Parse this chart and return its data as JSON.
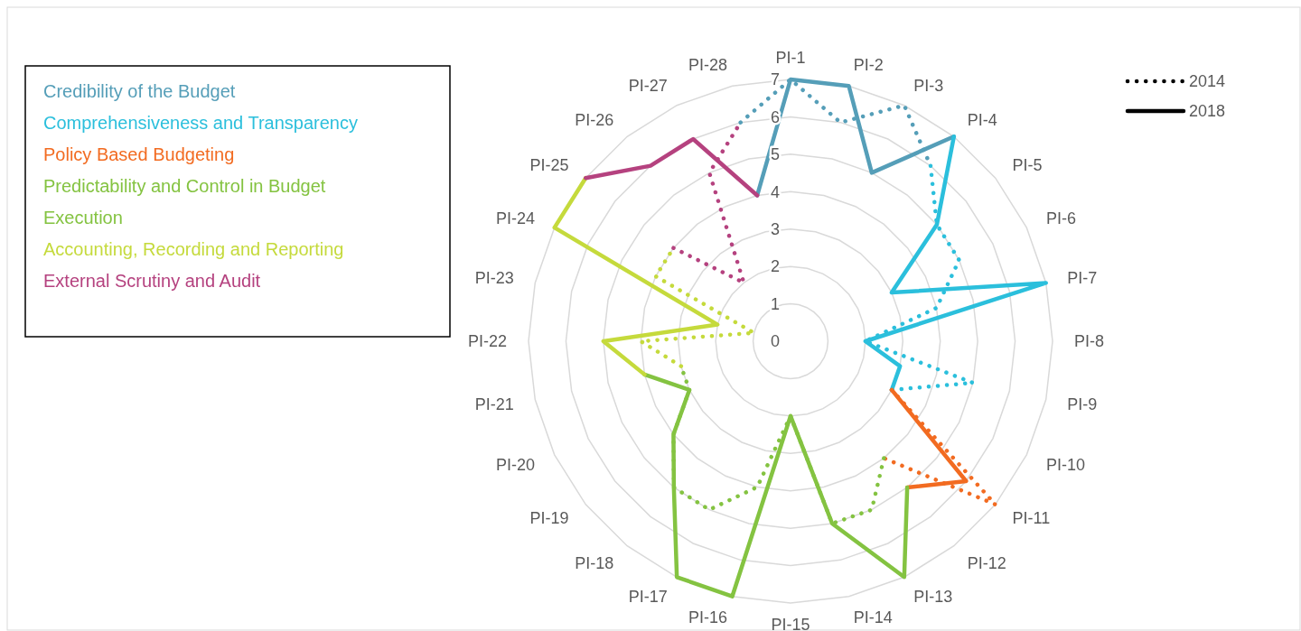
{
  "chart_data": {
    "type": "radar",
    "categories": [
      "PI-1",
      "PI-2",
      "PI-3",
      "PI-4",
      "PI-5",
      "PI-6",
      "PI-7",
      "PI-8",
      "PI-9",
      "PI-10",
      "PI-11",
      "PI-12",
      "PI-13",
      "PI-14",
      "PI-15",
      "PI-16",
      "PI-17",
      "PI-18",
      "PI-19",
      "PI-20",
      "PI-21",
      "PI-22",
      "PI-23",
      "PI-24",
      "PI-25",
      "PI-26",
      "PI-27",
      "PI-28"
    ],
    "ylim": [
      0,
      7
    ],
    "yticks": [
      0,
      1,
      2,
      3,
      4,
      5,
      6,
      7
    ],
    "grid": true,
    "legend": "left",
    "annotations": [
      "2014",
      "2018"
    ],
    "series": [
      {
        "color": "#559eb8",
        "line_style": "dotted",
        "values": [
          7,
          6,
          7,
          6,
          null,
          null,
          null,
          null,
          null,
          null,
          null,
          null,
          null,
          null,
          null,
          null,
          null,
          null,
          null,
          null,
          null,
          null,
          null,
          null,
          null,
          null,
          null,
          6
        ]
      },
      {
        "color": "#2bbfdc",
        "line_style": "dotted",
        "values": [
          null,
          null,
          null,
          6,
          5,
          5,
          4,
          2,
          5,
          3,
          null,
          null,
          null,
          null,
          null,
          null,
          null,
          null,
          null,
          null,
          null,
          null,
          null,
          null,
          null,
          null,
          null,
          null
        ]
      },
      {
        "color": "#f26b21",
        "line_style": "dotted",
        "values": [
          null,
          null,
          null,
          null,
          null,
          null,
          null,
          null,
          null,
          3,
          7,
          4,
          null,
          null,
          null,
          null,
          null,
          null,
          null,
          null,
          null,
          null,
          null,
          null,
          null,
          null,
          null,
          null
        ]
      },
      {
        "color": "#84c341",
        "line_style": "dotted",
        "values": [
          null,
          null,
          null,
          null,
          null,
          null,
          null,
          null,
          null,
          null,
          null,
          4,
          5,
          5,
          2,
          4,
          5,
          5,
          4,
          3,
          3,
          null,
          null,
          null,
          null,
          null,
          null,
          null
        ]
      },
      {
        "color": "#c5da3c",
        "line_style": "dotted",
        "values": [
          null,
          null,
          null,
          null,
          null,
          null,
          null,
          null,
          null,
          null,
          null,
          null,
          null,
          null,
          null,
          null,
          null,
          null,
          null,
          null,
          3,
          4,
          1,
          4,
          4,
          null,
          null,
          null
        ]
      },
      {
        "color": "#b5427f",
        "line_style": "dotted",
        "values": [
          null,
          null,
          null,
          null,
          null,
          null,
          null,
          null,
          null,
          null,
          null,
          null,
          null,
          null,
          null,
          null,
          null,
          null,
          null,
          null,
          null,
          null,
          null,
          null,
          4,
          2,
          5,
          6
        ]
      },
      {
        "name": "Credibility of the Budget",
        "color": "#559eb8",
        "line_style": "solid",
        "values": [
          7,
          7,
          5,
          7,
          null,
          null,
          null,
          null,
          null,
          null,
          null,
          null,
          null,
          null,
          null,
          null,
          null,
          null,
          null,
          null,
          null,
          null,
          null,
          null,
          null,
          null,
          null,
          4
        ]
      },
      {
        "name": "Comprehensiveness and Transparency",
        "color": "#2bbfdc",
        "line_style": "solid",
        "values": [
          null,
          null,
          null,
          7,
          5,
          3,
          7,
          2,
          3,
          3,
          null,
          null,
          null,
          null,
          null,
          null,
          null,
          null,
          null,
          null,
          null,
          null,
          null,
          null,
          null,
          null,
          null,
          null
        ]
      },
      {
        "name": "Policy Based Budgeting",
        "color": "#f26b21",
        "line_style": "solid",
        "values": [
          null,
          null,
          null,
          null,
          null,
          null,
          null,
          null,
          null,
          3,
          6,
          5,
          null,
          null,
          null,
          null,
          null,
          null,
          null,
          null,
          null,
          null,
          null,
          null,
          null,
          null,
          null,
          null
        ]
      },
      {
        "name": "Predictability and Control in Budget Execution",
        "color": "#84c341",
        "line_style": "solid",
        "values": [
          null,
          null,
          null,
          null,
          null,
          null,
          null,
          null,
          null,
          null,
          null,
          5,
          7,
          5,
          2,
          7,
          7,
          5,
          4,
          3,
          4,
          null,
          null,
          null,
          null,
          null,
          null,
          null
        ]
      },
      {
        "name": "Accounting, Recording and Reporting",
        "color": "#c5da3c",
        "line_style": "solid",
        "values": [
          null,
          null,
          null,
          null,
          null,
          null,
          null,
          null,
          null,
          null,
          null,
          null,
          null,
          null,
          null,
          null,
          null,
          null,
          null,
          null,
          4,
          5,
          2,
          7,
          7,
          null,
          null,
          null
        ]
      },
      {
        "name": "External Scrutiny and Audit",
        "color": "#b5427f",
        "line_style": "solid",
        "values": [
          null,
          null,
          null,
          null,
          null,
          null,
          null,
          null,
          null,
          null,
          null,
          null,
          null,
          null,
          null,
          null,
          null,
          null,
          null,
          null,
          null,
          null,
          null,
          null,
          7,
          6,
          6,
          4
        ]
      }
    ]
  }
}
